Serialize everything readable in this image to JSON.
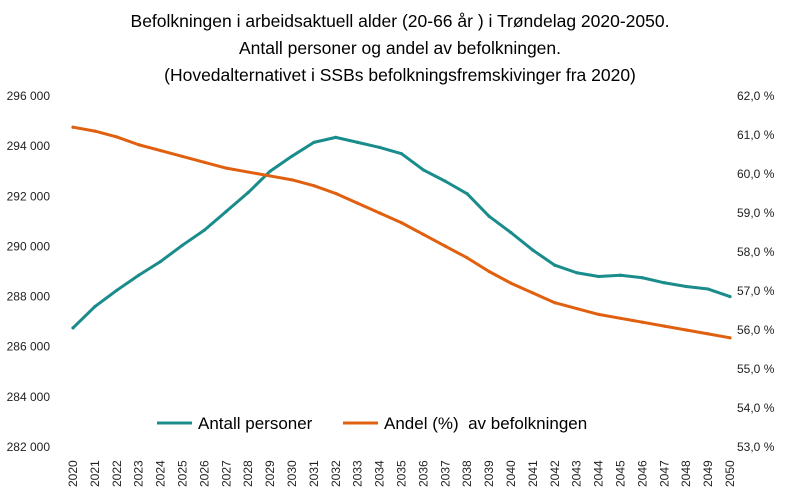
{
  "chart_data": {
    "type": "line",
    "title": [
      "Befolkningen i arbeidsaktuell alder (20-66 år ) i Trøndelag 2020-2050.",
      "Antall personer og andel av befolkningen.",
      "(Hovedalternativet i SSBs befolkningsfremskivinger fra 2020)"
    ],
    "categories": [
      "2020",
      "2021",
      "2022",
      "2023",
      "2024",
      "2025",
      "2026",
      "2027",
      "2028",
      "2029",
      "2030",
      "2031",
      "2032",
      "2033",
      "2034",
      "2035",
      "2036",
      "2037",
      "2038",
      "2039",
      "2040",
      "2041",
      "2042",
      "2043",
      "2044",
      "2045",
      "2046",
      "2047",
      "2048",
      "2049",
      "2050"
    ],
    "y_left": {
      "min": 282000,
      "max": 296000,
      "ticks": [
        282000,
        284000,
        286000,
        288000,
        290000,
        292000,
        294000,
        296000
      ],
      "tick_labels": [
        "282 000",
        "284 000",
        "286 000",
        "288 000",
        "290 000",
        "292 000",
        "294 000",
        "296 000"
      ]
    },
    "y_right": {
      "min": 53.0,
      "max": 62.0,
      "ticks": [
        53,
        54,
        55,
        56,
        57,
        58,
        59,
        60,
        61,
        62
      ],
      "tick_labels": [
        "53,0 %",
        "54,0 %",
        "55,0 %",
        "56,0 %",
        "57,0 %",
        "58,0 %",
        "59,0 %",
        "60,0 %",
        "61,0 %",
        "62,0 %"
      ]
    },
    "series": [
      {
        "name": "Antall personer",
        "axis": "left",
        "color": "#1a8c8c",
        "values": [
          286750,
          287600,
          288250,
          288850,
          289400,
          290050,
          290650,
          291400,
          292150,
          293000,
          293600,
          294150,
          294350,
          294150,
          293950,
          293700,
          293050,
          292600,
          292100,
          291200,
          290550,
          289850,
          289250,
          288950,
          288800,
          288850,
          288750,
          288550,
          288400,
          288300,
          288000
        ]
      },
      {
        "name": "Andel (%)  av befolkningen",
        "axis": "right",
        "color": "#e06010",
        "values": [
          61.2,
          61.1,
          60.95,
          60.75,
          60.6,
          60.45,
          60.3,
          60.15,
          60.05,
          59.95,
          59.85,
          59.7,
          59.5,
          59.25,
          59.0,
          58.75,
          58.45,
          58.15,
          57.85,
          57.5,
          57.2,
          56.95,
          56.7,
          56.55,
          56.4,
          56.3,
          56.2,
          56.1,
          56.0,
          55.9,
          55.8
        ]
      }
    ],
    "legend": {
      "position": "bottom-center"
    },
    "grid": false
  }
}
